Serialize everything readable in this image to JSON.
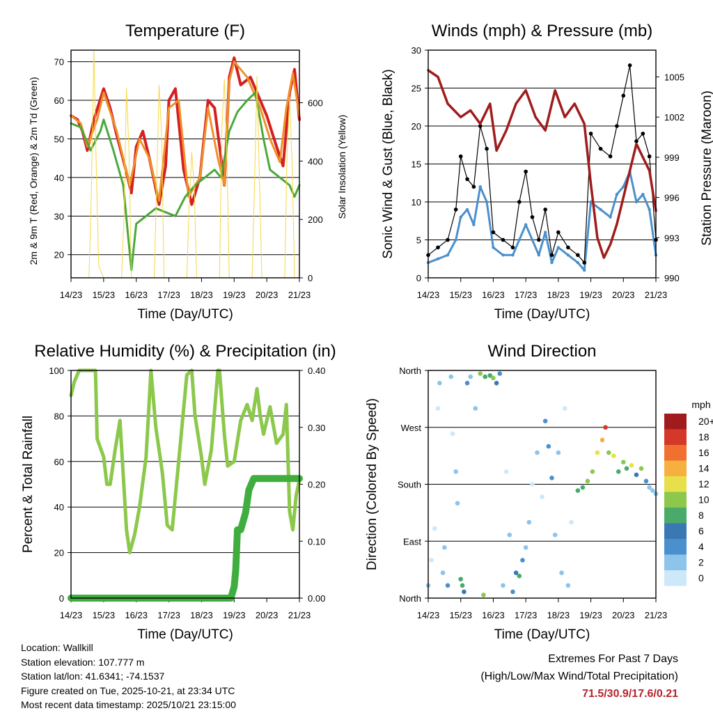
{
  "chart_data": [
    {
      "type": "line",
      "title": "Temperature (F)",
      "xlabel": "Time (Day/UTC)",
      "ylabel": "2m & 9m T (Red, Orange) & 2m Td (Green)",
      "ylabel_right": "Solar Insolation (Yellow)",
      "categories": [
        "14/23",
        "15/23",
        "16/23",
        "17/23",
        "18/23",
        "19/23",
        "20/23",
        "21/23"
      ],
      "ylim": [
        14,
        73
      ],
      "yticks": [
        20,
        30,
        40,
        50,
        60,
        70
      ],
      "y2lim": [
        0,
        780
      ],
      "y2ticks": [
        0,
        200,
        400,
        600
      ],
      "series": [
        {
          "name": "2m T",
          "color": "#d42020",
          "x": [
            0,
            0.2,
            0.35,
            0.5,
            0.7,
            1.0,
            1.2,
            1.4,
            1.65,
            1.85,
            2.0,
            2.2,
            2.4,
            2.7,
            2.9,
            3.0,
            3.2,
            3.45,
            3.7,
            3.95,
            4.2,
            4.4,
            4.6,
            4.7,
            4.85,
            5.0,
            5.2,
            5.5,
            5.8,
            6.0,
            6.3,
            6.5,
            6.7,
            6.85,
            7.0
          ],
          "values": [
            56,
            55,
            52,
            47,
            55,
            63,
            58,
            51,
            43,
            36,
            48,
            52,
            45,
            33,
            43,
            60,
            63,
            42,
            33,
            40,
            60,
            58,
            45,
            38,
            66,
            71,
            64,
            66,
            60,
            56,
            48,
            43,
            62,
            68,
            55
          ]
        },
        {
          "name": "9m T",
          "color": "#f0902a",
          "x": [
            0,
            0.3,
            0.5,
            0.8,
            1.0,
            1.4,
            1.8,
            2.1,
            2.4,
            2.7,
            3.0,
            3.3,
            3.6,
            3.95,
            4.2,
            4.5,
            4.7,
            4.85,
            5.0,
            5.4,
            5.8,
            6.1,
            6.4,
            6.6,
            6.8,
            7.0
          ],
          "values": [
            56,
            54,
            48,
            55,
            62,
            52,
            38,
            50,
            45,
            34,
            58,
            60,
            35,
            40,
            58,
            45,
            38,
            65,
            70,
            66,
            58,
            50,
            44,
            58,
            67,
            56
          ]
        },
        {
          "name": "2m Td",
          "color": "#4aa83a",
          "x": [
            0,
            0.3,
            0.6,
            0.9,
            1.0,
            1.3,
            1.6,
            1.85,
            2.0,
            2.3,
            2.6,
            2.9,
            3.2,
            3.5,
            3.8,
            4.1,
            4.4,
            4.6,
            4.85,
            5.1,
            5.4,
            5.65,
            5.9,
            6.1,
            6.4,
            6.7,
            6.85,
            7.0
          ],
          "values": [
            54,
            53,
            47,
            52,
            55,
            47,
            38,
            16,
            28,
            30,
            32,
            31,
            30,
            35,
            38,
            40,
            42,
            40,
            52,
            57,
            60,
            62,
            50,
            42,
            40,
            38,
            35,
            38
          ]
        },
        {
          "name": "Solar",
          "color": "#f5d842",
          "axis": "right",
          "x": [
            0,
            0.55,
            0.62,
            0.7,
            0.78,
            0.85,
            1.0,
            1.55,
            1.62,
            1.7,
            1.78,
            1.85,
            2.0,
            2.55,
            2.62,
            2.7,
            2.78,
            2.85,
            3.0,
            3.55,
            3.62,
            3.7,
            3.78,
            3.85,
            4.0,
            4.55,
            4.62,
            4.7,
            4.78,
            4.85,
            5.0,
            5.55,
            5.62,
            5.7,
            5.78,
            5.85,
            6.0,
            6.55,
            6.62,
            6.7,
            6.78,
            6.85,
            7.0
          ],
          "values": [
            0,
            0,
            280,
            780,
            350,
            40,
            0,
            0,
            200,
            650,
            420,
            0,
            0,
            0,
            300,
            660,
            480,
            0,
            0,
            0,
            250,
            430,
            300,
            0,
            0,
            0,
            500,
            680,
            400,
            0,
            0,
            0,
            300,
            690,
            320,
            0,
            0,
            0,
            420,
            620,
            380,
            0,
            0
          ]
        }
      ]
    },
    {
      "type": "scatter",
      "title": "Winds (mph) & Pressure (mb)",
      "xlabel": "Time (Day/UTC)",
      "ylabel": "Sonic Wind & Gust (Blue, Black)",
      "ylabel_right": "Station Pressure (Maroon)",
      "categories": [
        "14/23",
        "15/23",
        "16/23",
        "17/23",
        "18/23",
        "19/23",
        "20/23",
        "21/23"
      ],
      "ylim": [
        0,
        30
      ],
      "yticks": [
        0,
        5,
        10,
        15,
        20,
        25,
        30
      ],
      "y2lim": [
        990,
        1007
      ],
      "y2ticks": [
        990,
        993,
        996,
        999,
        1002,
        1005
      ],
      "series": [
        {
          "name": "Sonic Wind",
          "color": "#4a90cc",
          "x": [
            0,
            0.3,
            0.6,
            0.85,
            1.0,
            1.2,
            1.4,
            1.6,
            1.8,
            2.0,
            2.3,
            2.6,
            2.8,
            3.0,
            3.2,
            3.4,
            3.6,
            3.8,
            4.0,
            4.3,
            4.6,
            4.8,
            5.0,
            5.3,
            5.6,
            5.8,
            6.0,
            6.2,
            6.4,
            6.6,
            6.8,
            7.0
          ],
          "values": [
            2,
            2.5,
            3,
            5,
            8,
            9,
            7,
            12,
            10,
            4,
            3,
            3,
            5,
            7,
            5,
            3,
            6,
            2,
            4,
            3,
            2,
            1,
            10,
            9,
            8,
            11,
            12,
            14,
            10,
            11,
            9,
            3
          ]
        },
        {
          "name": "Gust",
          "color": "#000000",
          "x": [
            0,
            0.3,
            0.6,
            0.85,
            1.0,
            1.2,
            1.4,
            1.6,
            1.8,
            2.0,
            2.3,
            2.6,
            2.8,
            3.0,
            3.2,
            3.4,
            3.6,
            3.8,
            4.0,
            4.3,
            4.6,
            4.8,
            5.0,
            5.3,
            5.6,
            5.8,
            6.0,
            6.2,
            6.4,
            6.6,
            6.8,
            7.0
          ],
          "values": [
            3,
            4,
            5,
            9,
            16,
            13,
            12,
            20,
            17,
            6,
            5,
            4,
            10,
            14,
            8,
            5,
            9,
            3,
            6,
            4,
            3,
            2,
            19,
            17,
            16,
            20,
            24,
            28,
            18,
            19,
            16,
            5
          ]
        },
        {
          "name": "Station Pressure",
          "color": "#a01c1c",
          "axis": "right",
          "x": [
            0,
            0.3,
            0.6,
            0.8,
            1.0,
            1.3,
            1.6,
            1.9,
            2.1,
            2.4,
            2.7,
            3.0,
            3.3,
            3.6,
            3.9,
            4.2,
            4.5,
            4.8,
            5.0,
            5.2,
            5.4,
            5.6,
            5.8,
            6.0,
            6.2,
            6.4,
            6.6,
            6.8,
            7.0
          ],
          "values": [
            1005.5,
            1005,
            1003,
            1002.5,
            1002,
            1002.5,
            1001.5,
            1003,
            999.5,
            1001,
            1003,
            1004,
            1002,
            1001,
            1004,
            1002,
            1003,
            1001.5,
            997,
            993,
            991.5,
            992.5,
            994,
            996,
            998,
            1000,
            999,
            998,
            995
          ]
        }
      ]
    },
    {
      "type": "line",
      "title": "Relative Humidity (%) & Precipitation (in)",
      "xlabel": "Time (Day/UTC)",
      "ylabel": "Percent & Total Rainfall",
      "categories": [
        "14/23",
        "15/23",
        "16/23",
        "17/23",
        "18/23",
        "19/23",
        "20/23",
        "21/23"
      ],
      "ylim": [
        0,
        100
      ],
      "yticks": [
        0,
        20,
        40,
        60,
        80,
        100
      ],
      "y2lim": [
        0,
        0.4
      ],
      "y2ticks": [
        0,
        0.1,
        0.2,
        0.3,
        0.4
      ],
      "series": [
        {
          "name": "Relative Humidity",
          "color": "#8cc84b",
          "x": [
            0,
            0.1,
            0.25,
            0.5,
            0.75,
            0.8,
            1.0,
            1.1,
            1.2,
            1.35,
            1.5,
            1.7,
            1.8,
            1.95,
            2.1,
            2.3,
            2.45,
            2.6,
            2.8,
            2.95,
            3.1,
            3.3,
            3.55,
            3.7,
            3.8,
            4.0,
            4.1,
            4.3,
            4.5,
            4.55,
            4.7,
            4.8,
            5.0,
            5.2,
            5.4,
            5.55,
            5.7,
            5.8,
            5.9,
            6.1,
            6.3,
            6.5,
            6.6,
            6.7,
            6.8,
            6.9,
            7.0
          ],
          "values": [
            89,
            95,
            100,
            100,
            100,
            70,
            62,
            50,
            50,
            65,
            78,
            30,
            20,
            28,
            40,
            62,
            100,
            75,
            55,
            32,
            30,
            60,
            98,
            100,
            80,
            62,
            50,
            65,
            100,
            100,
            72,
            58,
            60,
            78,
            85,
            78,
            92,
            80,
            72,
            84,
            68,
            72,
            85,
            38,
            30,
            45,
            52
          ]
        },
        {
          "name": "Total Precipitation",
          "color": "#3fae3f",
          "axis": "right",
          "x": [
            0,
            4.3,
            4.9,
            5.0,
            5.05,
            5.1,
            5.2,
            5.35,
            5.45,
            5.6,
            5.8,
            6.2,
            6.6,
            7.0
          ],
          "values": [
            0,
            0,
            0,
            0.02,
            0.05,
            0.12,
            0.12,
            0.15,
            0.19,
            0.21,
            0.21,
            0.21,
            0.21,
            0.21
          ]
        }
      ]
    },
    {
      "type": "scatter",
      "title": "Wind Direction",
      "xlabel": "Time (Day/UTC)",
      "ylabel": "Direction (Colored By Speed)",
      "categories": [
        "14/23",
        "15/23",
        "16/23",
        "17/23",
        "18/23",
        "19/23",
        "20/23",
        "21/23"
      ],
      "ylim": [
        0,
        360
      ],
      "yticklabels": [
        "North",
        "East",
        "South",
        "West",
        "North"
      ],
      "colorbar": {
        "label": "mph",
        "levels": [
          "0",
          "2",
          "4",
          "6",
          "8",
          "10",
          "12",
          "14",
          "16",
          "18",
          "20+"
        ],
        "colors": [
          "#cde8f8",
          "#8cc4ea",
          "#4a90cc",
          "#3a78b4",
          "#4aaa6a",
          "#8cc84b",
          "#e8e04a",
          "#f5b040",
          "#f07030",
          "#d43828",
          "#a01c1c"
        ]
      },
      "points": [
        {
          "x": 0.0,
          "dir": 20,
          "speed": 2
        },
        {
          "x": 0.1,
          "dir": 60,
          "speed": 1
        },
        {
          "x": 0.2,
          "dir": 110,
          "speed": 0
        },
        {
          "x": 0.3,
          "dir": 300,
          "speed": 1
        },
        {
          "x": 0.35,
          "dir": 340,
          "speed": 2
        },
        {
          "x": 0.45,
          "dir": 40,
          "speed": 3
        },
        {
          "x": 0.5,
          "dir": 80,
          "speed": 2
        },
        {
          "x": 0.6,
          "dir": 20,
          "speed": 4
        },
        {
          "x": 0.7,
          "dir": 350,
          "speed": 3
        },
        {
          "x": 0.75,
          "dir": 260,
          "speed": 1
        },
        {
          "x": 0.85,
          "dir": 200,
          "speed": 2
        },
        {
          "x": 0.9,
          "dir": 150,
          "speed": 3
        },
        {
          "x": 1.0,
          "dir": 30,
          "speed": 8
        },
        {
          "x": 1.05,
          "dir": 20,
          "speed": 9
        },
        {
          "x": 1.1,
          "dir": 10,
          "speed": 6
        },
        {
          "x": 1.2,
          "dir": 340,
          "speed": 5
        },
        {
          "x": 1.3,
          "dir": 350,
          "speed": 2
        },
        {
          "x": 1.45,
          "dir": 300,
          "speed": 3
        },
        {
          "x": 1.6,
          "dir": 355,
          "speed": 10
        },
        {
          "x": 1.7,
          "dir": 5,
          "speed": 11
        },
        {
          "x": 1.75,
          "dir": 350,
          "speed": 8
        },
        {
          "x": 1.9,
          "dir": 352,
          "speed": 9
        },
        {
          "x": 2.0,
          "dir": 348,
          "speed": 10
        },
        {
          "x": 2.1,
          "dir": 340,
          "speed": 7
        },
        {
          "x": 2.2,
          "dir": 355,
          "speed": 4
        },
        {
          "x": 2.3,
          "dir": 20,
          "speed": 2
        },
        {
          "x": 2.4,
          "dir": 200,
          "speed": 1
        },
        {
          "x": 2.5,
          "dir": 100,
          "speed": 3
        },
        {
          "x": 2.6,
          "dir": 10,
          "speed": 4
        },
        {
          "x": 2.7,
          "dir": 40,
          "speed": 7
        },
        {
          "x": 2.8,
          "dir": 35,
          "speed": 8
        },
        {
          "x": 2.9,
          "dir": 60,
          "speed": 4
        },
        {
          "x": 3.0,
          "dir": 80,
          "speed": 3
        },
        {
          "x": 3.1,
          "dir": 120,
          "speed": 2
        },
        {
          "x": 3.2,
          "dir": 180,
          "speed": 1
        },
        {
          "x": 3.35,
          "dir": 230,
          "speed": 2
        },
        {
          "x": 3.5,
          "dir": 160,
          "speed": 1
        },
        {
          "x": 3.6,
          "dir": 280,
          "speed": 4
        },
        {
          "x": 3.7,
          "dir": 240,
          "speed": 5
        },
        {
          "x": 3.8,
          "dir": 190,
          "speed": 4
        },
        {
          "x": 3.9,
          "dir": 100,
          "speed": 3
        },
        {
          "x": 4.0,
          "dir": 230,
          "speed": 2
        },
        {
          "x": 4.1,
          "dir": 40,
          "speed": 2
        },
        {
          "x": 4.2,
          "dir": 300,
          "speed": 1
        },
        {
          "x": 4.3,
          "dir": 20,
          "speed": 2
        },
        {
          "x": 4.4,
          "dir": 120,
          "speed": 1
        },
        {
          "x": 4.6,
          "dir": 170,
          "speed": 8
        },
        {
          "x": 4.75,
          "dir": 175,
          "speed": 9
        },
        {
          "x": 4.9,
          "dir": 185,
          "speed": 10
        },
        {
          "x": 5.05,
          "dir": 200,
          "speed": 11
        },
        {
          "x": 5.2,
          "dir": 230,
          "speed": 12
        },
        {
          "x": 5.35,
          "dir": 250,
          "speed": 14
        },
        {
          "x": 5.45,
          "dir": 270,
          "speed": 18
        },
        {
          "x": 5.55,
          "dir": 230,
          "speed": 11
        },
        {
          "x": 5.7,
          "dir": 225,
          "speed": 12
        },
        {
          "x": 5.85,
          "dir": 200,
          "speed": 8
        },
        {
          "x": 6.0,
          "dir": 215,
          "speed": 10
        },
        {
          "x": 6.1,
          "dir": 205,
          "speed": 9
        },
        {
          "x": 6.25,
          "dir": 210,
          "speed": 12
        },
        {
          "x": 6.4,
          "dir": 195,
          "speed": 7
        },
        {
          "x": 6.55,
          "dir": 205,
          "speed": 11
        },
        {
          "x": 6.7,
          "dir": 185,
          "speed": 5
        },
        {
          "x": 6.8,
          "dir": 175,
          "speed": 3
        },
        {
          "x": 6.9,
          "dir": 170,
          "speed": 2
        },
        {
          "x": 7.0,
          "dir": 165,
          "speed": 3
        }
      ]
    }
  ],
  "info": {
    "location": "Location: Wallkill",
    "elevation": "Station elevation: 107.777 m",
    "latlon": "Station lat/lon: 41.6341; -74.1537",
    "created": "Figure created on Tue, 2025-10-21, at 23:34 UTC",
    "timestamp": "Most recent data timestamp: 2025/10/21 23:15:00"
  },
  "extremes": {
    "heading": "Extremes For Past 7 Days",
    "subheading": "(High/Low/Max Wind/Total Precipitation)",
    "values": "71.5/30.9/17.6/0.21"
  }
}
